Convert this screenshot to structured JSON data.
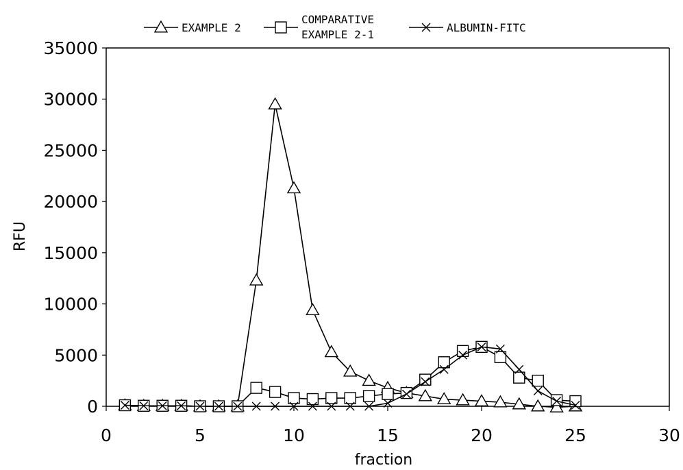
{
  "chart_data": {
    "type": "line",
    "xlabel": "fraction",
    "ylabel": "RFU",
    "xlim": [
      0,
      30
    ],
    "ylim": [
      0,
      35000
    ],
    "xticks": [
      0,
      5,
      10,
      15,
      20,
      25,
      30
    ],
    "yticks": [
      0,
      5000,
      10000,
      15000,
      20000,
      25000,
      30000,
      35000
    ],
    "legend_position": "top",
    "series": [
      {
        "name": "EXAMPLE 2",
        "name_lines": [
          "EXAMPLE 2"
        ],
        "marker": "triangle",
        "x": [
          1,
          2,
          3,
          4,
          5,
          6,
          7,
          8,
          9,
          10,
          11,
          12,
          13,
          14,
          15,
          16,
          17,
          18,
          19,
          20,
          21,
          22,
          23,
          24,
          25
        ],
        "values": [
          100,
          50,
          50,
          50,
          0,
          0,
          0,
          12300,
          29500,
          21300,
          9400,
          5300,
          3400,
          2500,
          1800,
          1300,
          1000,
          700,
          600,
          500,
          400,
          200,
          0,
          -100,
          0
        ]
      },
      {
        "name": "COMPARATIVE EXAMPLE 2-1",
        "name_lines": [
          "COMPARATIVE",
          "EXAMPLE 2-1"
        ],
        "marker": "square",
        "x": [
          1,
          2,
          3,
          4,
          5,
          6,
          7,
          8,
          9,
          10,
          11,
          12,
          13,
          14,
          15,
          16,
          17,
          18,
          19,
          20,
          21,
          22,
          23,
          24,
          25
        ],
        "values": [
          100,
          50,
          50,
          50,
          0,
          0,
          0,
          1800,
          1400,
          800,
          700,
          800,
          800,
          1000,
          1200,
          1300,
          2600,
          4300,
          5400,
          5800,
          4800,
          2800,
          2500,
          600,
          500
        ]
      },
      {
        "name": "ALBUMIN-FITC",
        "name_lines": [
          "ALBUMIN-FITC"
        ],
        "marker": "x",
        "x": [
          1,
          2,
          3,
          4,
          5,
          6,
          7,
          8,
          9,
          10,
          11,
          12,
          13,
          14,
          15,
          16,
          17,
          18,
          19,
          20,
          21,
          22,
          23,
          24,
          25
        ],
        "values": [
          100,
          50,
          50,
          50,
          0,
          0,
          0,
          0,
          0,
          0,
          0,
          0,
          0,
          0,
          300,
          1200,
          2400,
          3600,
          5000,
          5800,
          5600,
          3600,
          1500,
          500,
          100
        ]
      }
    ]
  }
}
